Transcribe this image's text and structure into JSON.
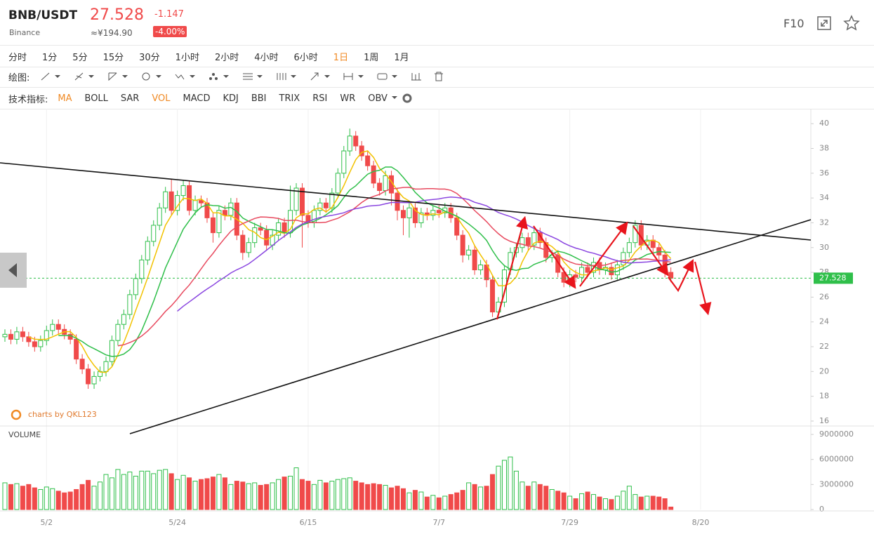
{
  "header": {
    "symbol": "BNB/USDT",
    "exchange": "Binance",
    "price": "27.528",
    "change": "-1.147",
    "cny_price": "≈¥194.90",
    "change_percent": "-4.00%",
    "f10": "F10"
  },
  "toolbar": {
    "timeframes": [
      {
        "label": "分时",
        "active": false
      },
      {
        "label": "1分",
        "active": false
      },
      {
        "label": "5分",
        "active": false
      },
      {
        "label": "15分",
        "active": false
      },
      {
        "label": "30分",
        "active": false
      },
      {
        "label": "1小时",
        "active": false
      },
      {
        "label": "2小时",
        "active": false
      },
      {
        "label": "4小时",
        "active": false
      },
      {
        "label": "6小时",
        "active": false
      },
      {
        "label": "1日",
        "active": true
      },
      {
        "label": "1周",
        "active": false
      },
      {
        "label": "1月",
        "active": false
      }
    ],
    "drawing_label": "绘图:",
    "indicators_label": "技术指标:",
    "indicators": [
      {
        "label": "MA",
        "active": true
      },
      {
        "label": "BOLL",
        "active": false
      },
      {
        "label": "SAR",
        "active": false
      },
      {
        "label": "VOL",
        "active": true
      },
      {
        "label": "MACD",
        "active": false
      },
      {
        "label": "KDJ",
        "active": false
      },
      {
        "label": "BBI",
        "active": false
      },
      {
        "label": "TRIX",
        "active": false
      },
      {
        "label": "RSI",
        "active": false
      },
      {
        "label": "WR",
        "active": false
      },
      {
        "label": "OBV",
        "active": false
      }
    ]
  },
  "chart_data": {
    "type": "candlestick",
    "watermark": "charts by QKL123",
    "up_color": "#2fbf4a",
    "down_color": "#f04a4a",
    "grid": "x",
    "current_price": 27.528,
    "current_price_color": "#2fbf4a",
    "categories": [
      null,
      null,
      null,
      null,
      null,
      null,
      null,
      "5/2",
      null,
      null,
      null,
      null,
      null,
      null,
      null,
      null,
      null,
      null,
      null,
      null,
      null,
      null,
      null,
      null,
      null,
      null,
      null,
      null,
      null,
      "5/24",
      null,
      null,
      null,
      null,
      null,
      null,
      null,
      null,
      null,
      null,
      null,
      null,
      null,
      null,
      null,
      null,
      null,
      null,
      null,
      null,
      null,
      "6/15",
      null,
      null,
      null,
      null,
      null,
      null,
      null,
      null,
      null,
      null,
      null,
      null,
      null,
      null,
      null,
      null,
      null,
      null,
      null,
      null,
      null,
      "7/7",
      null,
      null,
      null,
      null,
      null,
      null,
      null,
      null,
      null,
      null,
      null,
      null,
      null,
      null,
      null,
      null,
      null,
      null,
      null,
      null,
      null,
      "7/29",
      null,
      null,
      null,
      null,
      null,
      null,
      null,
      null,
      null,
      null,
      null,
      null,
      null,
      null,
      null,
      null,
      null,
      null,
      null,
      null,
      null,
      "8/20"
    ],
    "open": [
      22.8,
      23.0,
      22.6,
      23.2,
      22.8,
      22.4,
      22.0,
      22.5,
      23.3,
      23.8,
      23.4,
      23.0,
      22.6,
      21.0,
      20.2,
      19.0,
      19.6,
      20.0,
      20.8,
      22.5,
      23.8,
      24.6,
      26.2,
      27.5,
      29.0,
      30.5,
      31.8,
      33.2,
      34.5,
      33.0,
      34.2,
      35.0,
      33.0,
      33.8,
      33.6,
      32.4,
      31.2,
      33.0,
      32.6,
      33.6,
      31.0,
      29.6,
      30.4,
      31.6,
      31.4,
      30.2,
      31.0,
      32.0,
      31.2,
      33.0,
      34.8,
      32.6,
      32.0,
      33.0,
      33.6,
      33.2,
      34.4,
      36.0,
      37.8,
      39.0,
      38.2,
      37.4,
      36.6,
      35.2,
      34.6,
      35.8,
      34.4,
      33.0,
      32.4,
      33.2,
      32.0,
      32.8,
      32.6,
      33.0,
      32.8,
      33.2,
      32.4,
      31.0,
      29.4,
      29.8,
      28.2,
      28.6,
      27.4,
      24.8,
      25.6,
      28.2,
      29.6,
      30.0,
      30.8,
      30.2,
      31.2,
      30.4,
      29.2,
      29.4,
      28.0,
      27.2,
      27.8,
      27.6,
      28.4,
      28.0,
      28.8,
      28.2,
      28.4,
      27.8,
      28.6,
      29.6,
      30.4,
      31.8,
      30.2,
      30.6,
      30.0,
      29.4,
      28.0,
      null,
      null,
      null,
      null,
      null
    ],
    "high": [
      23.4,
      23.4,
      23.6,
      23.6,
      23.2,
      22.8,
      22.9,
      23.7,
      24.2,
      24.2,
      23.8,
      23.4,
      23.0,
      21.4,
      20.6,
      20.0,
      20.4,
      21.2,
      22.9,
      24.2,
      25.0,
      26.6,
      27.9,
      29.4,
      30.9,
      32.2,
      33.6,
      34.9,
      35.5,
      34.6,
      35.4,
      35.4,
      34.2,
      34.2,
      34.0,
      32.8,
      33.4,
      33.4,
      34.0,
      34.0,
      31.4,
      30.8,
      32.0,
      32.0,
      31.8,
      31.4,
      32.4,
      32.4,
      35.0,
      35.2,
      35.2,
      33.0,
      33.4,
      34.0,
      34.0,
      34.8,
      36.4,
      38.2,
      39.6,
      39.4,
      38.6,
      37.8,
      37.0,
      35.6,
      36.2,
      36.2,
      34.8,
      33.4,
      33.6,
      33.6,
      33.2,
      33.2,
      33.4,
      33.4,
      33.6,
      33.6,
      32.8,
      31.4,
      30.2,
      30.2,
      29.0,
      29.0,
      27.8,
      26.0,
      28.6,
      30.0,
      30.4,
      31.2,
      31.2,
      31.6,
      31.6,
      30.8,
      29.8,
      29.8,
      28.4,
      28.2,
      28.2,
      28.8,
      28.8,
      29.2,
      29.2,
      28.8,
      28.8,
      29.0,
      30.0,
      30.8,
      32.2,
      32.2,
      31.0,
      31.0,
      30.4,
      29.8,
      28.4,
      null,
      null,
      null,
      null,
      null
    ],
    "low": [
      22.4,
      22.2,
      22.2,
      22.4,
      22.0,
      21.6,
      21.6,
      22.1,
      22.9,
      23.0,
      22.6,
      22.2,
      20.6,
      19.8,
      18.6,
      18.6,
      19.2,
      19.6,
      20.4,
      22.1,
      23.4,
      24.2,
      25.8,
      27.1,
      28.6,
      30.1,
      31.4,
      32.8,
      32.6,
      32.6,
      33.8,
      32.6,
      32.6,
      33.2,
      32.0,
      30.4,
      30.8,
      32.2,
      32.2,
      30.6,
      29.0,
      29.2,
      30.0,
      31.0,
      29.8,
      29.8,
      30.6,
      30.8,
      30.8,
      32.6,
      30.0,
      31.6,
      31.6,
      32.6,
      32.8,
      32.8,
      34.0,
      35.6,
      37.4,
      37.8,
      37.0,
      36.2,
      34.8,
      34.2,
      34.2,
      33.4,
      32.2,
      31.0,
      30.8,
      31.6,
      31.6,
      32.2,
      32.2,
      32.4,
      32.4,
      32.0,
      30.6,
      28.8,
      29.0,
      27.8,
      27.8,
      26.8,
      24.4,
      24.4,
      25.2,
      27.8,
      29.2,
      29.6,
      29.8,
      29.8,
      30.0,
      28.8,
      28.8,
      27.6,
      26.8,
      26.8,
      27.2,
      27.2,
      27.6,
      27.6,
      27.8,
      27.8,
      27.4,
      27.4,
      28.2,
      29.2,
      30.0,
      29.8,
      29.8,
      29.6,
      29.0,
      27.6,
      27.2,
      null,
      null,
      null,
      null,
      null
    ],
    "close": [
      23.0,
      22.6,
      23.2,
      22.8,
      22.4,
      22.0,
      22.5,
      23.3,
      23.8,
      23.4,
      23.0,
      22.6,
      21.0,
      20.2,
      19.0,
      19.6,
      20.0,
      20.8,
      22.5,
      23.8,
      24.6,
      26.2,
      27.5,
      29.0,
      30.5,
      31.8,
      33.2,
      34.5,
      33.0,
      34.2,
      35.0,
      33.0,
      33.8,
      33.6,
      32.4,
      31.2,
      33.0,
      32.6,
      33.6,
      31.0,
      29.6,
      30.4,
      31.6,
      31.4,
      30.2,
      31.0,
      32.0,
      31.2,
      33.0,
      34.8,
      32.6,
      32.0,
      33.0,
      33.6,
      33.2,
      34.4,
      36.0,
      37.8,
      39.0,
      38.2,
      37.4,
      36.6,
      35.2,
      34.6,
      35.8,
      34.4,
      33.0,
      32.4,
      33.2,
      32.0,
      32.8,
      32.6,
      33.0,
      32.8,
      33.2,
      32.4,
      31.0,
      29.4,
      29.8,
      28.2,
      28.6,
      27.4,
      24.8,
      25.6,
      28.2,
      29.6,
      30.0,
      30.8,
      30.2,
      31.2,
      30.4,
      29.2,
      29.4,
      28.0,
      27.2,
      27.8,
      27.6,
      28.4,
      28.0,
      28.8,
      28.2,
      28.4,
      27.8,
      28.6,
      29.6,
      30.4,
      31.8,
      30.2,
      30.6,
      30.0,
      29.4,
      28.0,
      27.528,
      null,
      null,
      null,
      null,
      null
    ],
    "ylim": [
      15.6,
      41.2
    ],
    "yticks": [
      16,
      18,
      20,
      22,
      24,
      26,
      28,
      30,
      32,
      34,
      36,
      38,
      40
    ],
    "moving_averages": [
      {
        "period": 5,
        "color": "#f2c200"
      },
      {
        "period": 10,
        "color": "#2fbf4a"
      },
      {
        "period": 20,
        "color": "#e84a5f"
      },
      {
        "period": 30,
        "color": "#8a46e0"
      }
    ],
    "volume": {
      "title": "VOLUME",
      "values": [
        3200000,
        3000000,
        3100000,
        2800000,
        3000000,
        2600000,
        2400000,
        2700000,
        2500000,
        2200000,
        2000000,
        2100000,
        2400000,
        3000000,
        3500000,
        2800000,
        3300000,
        4200000,
        3800000,
        4800000,
        4200000,
        4500000,
        4000000,
        4600000,
        4600000,
        4300000,
        4700000,
        4800000,
        4300000,
        3600000,
        4100000,
        3800000,
        3400000,
        3600000,
        3700000,
        3900000,
        4200000,
        3800000,
        3000000,
        3400000,
        3300000,
        3100000,
        3200000,
        2900000,
        3000000,
        3200000,
        3600000,
        3900000,
        4000000,
        5000000,
        3600000,
        3400000,
        3000000,
        3500000,
        3200000,
        3400000,
        3600000,
        3700000,
        3800000,
        3400000,
        3200000,
        3000000,
        3100000,
        3000000,
        2900000,
        2600000,
        2800000,
        2500000,
        2000000,
        2300000,
        2100000,
        1500000,
        1700000,
        1400000,
        1600000,
        1800000,
        2000000,
        2300000,
        3200000,
        3000000,
        2700000,
        2800000,
        4200000,
        5200000,
        5900000,
        6300000,
        4600000,
        3300000,
        2800000,
        3300000,
        3000000,
        2800000,
        2400000,
        2200000,
        2000000,
        1600000,
        1300000,
        1900000,
        2100000,
        1800000,
        1500000,
        1300000,
        1200000,
        1600000,
        2200000,
        2800000,
        1800000,
        1500000,
        1600000,
        1600000,
        1500000,
        1300000,
        300000,
        null,
        null,
        null,
        null,
        null
      ],
      "ylim": [
        0,
        9000000
      ],
      "yticks": [
        0,
        3000000,
        6000000,
        9000000
      ]
    }
  }
}
